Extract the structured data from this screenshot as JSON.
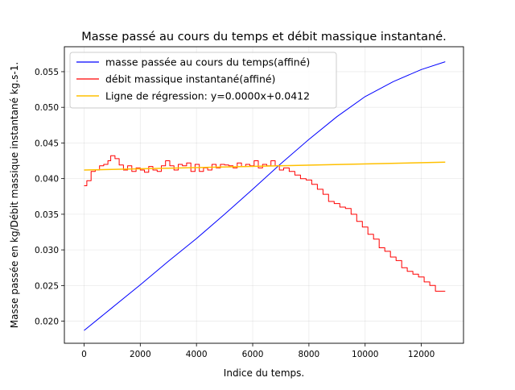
{
  "chart_data": {
    "type": "line",
    "title": "Masse passé au cours du temps et débit massique instantané.",
    "xlabel": "Indice du temps.",
    "ylabel": "Masse passée en kg/Débit massique instantané kg.s-1.",
    "xlim": [
      -700,
      13500
    ],
    "ylim": [
      0.0169,
      0.0585
    ],
    "xticks": [
      0,
      2000,
      4000,
      6000,
      8000,
      10000,
      12000
    ],
    "xtick_labels": [
      "0",
      "2000",
      "4000",
      "6000",
      "8000",
      "10000",
      "12000"
    ],
    "yticks": [
      0.02,
      0.025,
      0.03,
      0.035,
      0.04,
      0.045,
      0.05,
      0.055
    ],
    "ytick_labels": [
      "0.020",
      "0.025",
      "0.030",
      "0.035",
      "0.040",
      "0.045",
      "0.050",
      "0.055"
    ],
    "grid": true,
    "legend_position": "upper-left",
    "series": [
      {
        "name": "masse passée au cours du temps(affiné)",
        "color": "#0000ff",
        "style": "line",
        "x": [
          0,
          1000,
          2000,
          3000,
          4000,
          5000,
          6000,
          7000,
          8000,
          9000,
          10000,
          11000,
          12000,
          12850
        ],
        "y": [
          0.0187,
          0.0219,
          0.0251,
          0.0284,
          0.0316,
          0.035,
          0.0385,
          0.0421,
          0.0455,
          0.0487,
          0.0515,
          0.0536,
          0.0553,
          0.0564
        ]
      },
      {
        "name": "débit massique instantané(affiné)",
        "color": "#ff0000",
        "style": "step",
        "x": [
          0,
          100,
          250,
          400,
          550,
          700,
          850,
          950,
          1100,
          1250,
          1400,
          1550,
          1700,
          1850,
          2000,
          2150,
          2300,
          2450,
          2600,
          2750,
          2900,
          3050,
          3200,
          3350,
          3500,
          3650,
          3800,
          3950,
          4100,
          4250,
          4400,
          4550,
          4700,
          4850,
          5000,
          5150,
          5300,
          5450,
          5600,
          5750,
          5900,
          6050,
          6200,
          6350,
          6500,
          6650,
          6800,
          6950,
          7100,
          7300,
          7500,
          7700,
          7900,
          8100,
          8300,
          8500,
          8700,
          8900,
          9100,
          9300,
          9500,
          9700,
          9900,
          10100,
          10300,
          10500,
          10700,
          10900,
          11100,
          11300,
          11500,
          11700,
          11900,
          12100,
          12300,
          12500,
          12850
        ],
        "y": [
          0.039,
          0.0397,
          0.041,
          0.0412,
          0.0418,
          0.042,
          0.0425,
          0.0432,
          0.0428,
          0.0419,
          0.0412,
          0.0418,
          0.041,
          0.0415,
          0.0412,
          0.0409,
          0.0417,
          0.0412,
          0.041,
          0.0418,
          0.0425,
          0.0418,
          0.0412,
          0.042,
          0.0418,
          0.0422,
          0.041,
          0.042,
          0.041,
          0.0415,
          0.0412,
          0.042,
          0.0415,
          0.042,
          0.0419,
          0.0418,
          0.0415,
          0.0422,
          0.0417,
          0.042,
          0.0418,
          0.0425,
          0.0415,
          0.042,
          0.0418,
          0.0425,
          0.0418,
          0.0412,
          0.0415,
          0.041,
          0.0405,
          0.04,
          0.0398,
          0.0392,
          0.0385,
          0.0378,
          0.0368,
          0.0365,
          0.036,
          0.0358,
          0.035,
          0.034,
          0.0332,
          0.0322,
          0.0315,
          0.0303,
          0.0298,
          0.029,
          0.0285,
          0.0275,
          0.027,
          0.0266,
          0.0262,
          0.0255,
          0.025,
          0.0242,
          0.0242
        ]
      },
      {
        "name": "Ligne de régression: y=0.0000x+0.0412",
        "color": "#ffc000",
        "style": "line",
        "x": [
          0,
          12850
        ],
        "y": [
          0.0412,
          0.0423
        ]
      }
    ]
  }
}
